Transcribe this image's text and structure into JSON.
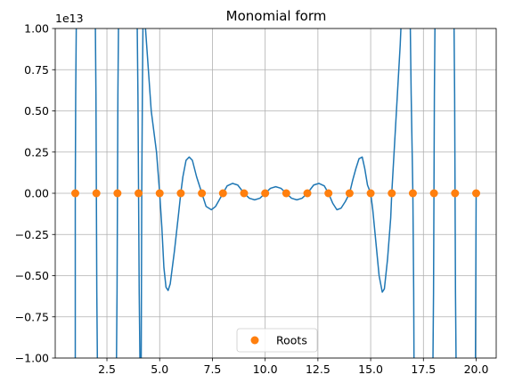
{
  "chart_data": {
    "type": "line",
    "title": "Monomial form",
    "xlabel": "",
    "ylabel": "",
    "xlim": [
      0.05,
      20.95
    ],
    "ylim": [
      -1.0,
      1.0
    ],
    "y_scale_label": "1e13",
    "x_ticks": [
      2.5,
      5.0,
      7.5,
      10.0,
      12.5,
      15.0,
      17.5,
      20.0
    ],
    "x_tick_labels": [
      "2.5",
      "5.0",
      "7.5",
      "10.0",
      "12.5",
      "15.0",
      "17.5",
      "20.0"
    ],
    "y_ticks": [
      -1.0,
      -0.75,
      -0.5,
      -0.25,
      0.0,
      0.25,
      0.5,
      0.75,
      1.0
    ],
    "y_tick_labels": [
      "−1.00",
      "−0.75",
      "−0.50",
      "−0.25",
      "0.00",
      "0.25",
      "0.50",
      "0.75",
      "1.00"
    ],
    "grid": true,
    "legend_position": "bottom-center",
    "series": [
      {
        "name": "",
        "kind": "line",
        "color": "#1f77b4",
        "points": [
          [
            1.0,
            -1.2
          ],
          [
            1.0,
            0.0
          ],
          [
            1.02,
            0.6
          ],
          [
            1.06,
            1.2
          ],
          [
            1.94,
            1.2
          ],
          [
            1.98,
            0.6
          ],
          [
            2.0,
            0.0
          ],
          [
            2.02,
            -0.6
          ],
          [
            2.06,
            -1.2
          ],
          [
            2.94,
            -1.2
          ],
          [
            2.98,
            -0.6
          ],
          [
            3.0,
            0.0
          ],
          [
            3.02,
            0.6
          ],
          [
            3.06,
            1.2
          ],
          [
            3.92,
            1.2
          ],
          [
            3.97,
            0.6
          ],
          [
            4.0,
            0.0
          ],
          [
            4.03,
            -0.6
          ],
          [
            4.08,
            -1.2
          ],
          [
            4.12,
            -1.2
          ],
          [
            4.15,
            0.0
          ],
          [
            4.18,
            0.6
          ],
          [
            4.22,
            1.2
          ],
          [
            4.6,
            0.5
          ],
          [
            4.85,
            0.25
          ],
          [
            5.0,
            0.0
          ],
          [
            5.1,
            -0.2
          ],
          [
            5.2,
            -0.45
          ],
          [
            5.3,
            -0.57
          ],
          [
            5.4,
            -0.59
          ],
          [
            5.5,
            -0.55
          ],
          [
            5.7,
            -0.35
          ],
          [
            5.9,
            -0.12
          ],
          [
            6.0,
            0.0
          ],
          [
            6.1,
            0.1
          ],
          [
            6.25,
            0.2
          ],
          [
            6.4,
            0.22
          ],
          [
            6.55,
            0.2
          ],
          [
            6.75,
            0.1
          ],
          [
            7.0,
            0.0
          ],
          [
            7.2,
            -0.08
          ],
          [
            7.45,
            -0.1
          ],
          [
            7.65,
            -0.08
          ],
          [
            8.0,
            0.0
          ],
          [
            8.2,
            0.045
          ],
          [
            8.45,
            0.06
          ],
          [
            8.7,
            0.05
          ],
          [
            9.0,
            0.0
          ],
          [
            9.25,
            -0.03
          ],
          [
            9.5,
            -0.04
          ],
          [
            9.75,
            -0.03
          ],
          [
            10.0,
            0.0
          ],
          [
            10.25,
            0.03
          ],
          [
            10.5,
            0.04
          ],
          [
            10.75,
            0.03
          ],
          [
            11.0,
            0.0
          ],
          [
            11.25,
            -0.03
          ],
          [
            11.5,
            -0.04
          ],
          [
            11.75,
            -0.03
          ],
          [
            12.0,
            0.0
          ],
          [
            12.3,
            0.05
          ],
          [
            12.55,
            0.06
          ],
          [
            12.8,
            0.045
          ],
          [
            13.0,
            0.0
          ],
          [
            13.2,
            -0.06
          ],
          [
            13.4,
            -0.1
          ],
          [
            13.6,
            -0.09
          ],
          [
            13.8,
            -0.05
          ],
          [
            14.0,
            0.0
          ],
          [
            14.15,
            0.08
          ],
          [
            14.3,
            0.15
          ],
          [
            14.45,
            0.21
          ],
          [
            14.6,
            0.22
          ],
          [
            14.72,
            0.15
          ],
          [
            14.85,
            0.05
          ],
          [
            15.0,
            0.0
          ],
          [
            15.1,
            -0.1
          ],
          [
            15.25,
            -0.3
          ],
          [
            15.4,
            -0.5
          ],
          [
            15.55,
            -0.6
          ],
          [
            15.65,
            -0.58
          ],
          [
            15.8,
            -0.4
          ],
          [
            15.95,
            -0.15
          ],
          [
            16.0,
            0.0
          ],
          [
            16.2,
            0.45
          ],
          [
            16.4,
            0.9
          ],
          [
            16.5,
            1.2
          ],
          [
            16.86,
            1.2
          ],
          [
            16.92,
            0.6
          ],
          [
            17.0,
            0.0
          ],
          [
            17.04,
            -0.6
          ],
          [
            17.06,
            -1.2
          ],
          [
            17.94,
            -1.2
          ],
          [
            17.98,
            -0.6
          ],
          [
            18.0,
            0.0
          ],
          [
            18.02,
            0.6
          ],
          [
            18.06,
            1.2
          ],
          [
            18.94,
            1.2
          ],
          [
            18.98,
            0.6
          ],
          [
            19.0,
            0.0
          ],
          [
            19.02,
            -0.6
          ],
          [
            19.06,
            -1.2
          ],
          [
            19.96,
            -1.2
          ],
          [
            19.98,
            -0.6
          ],
          [
            20.0,
            0.0
          ]
        ]
      },
      {
        "name": "Roots",
        "kind": "scatter",
        "color": "#ff7f0e",
        "x": [
          1,
          2,
          3,
          4,
          5,
          6,
          7,
          8,
          9,
          10,
          11,
          12,
          13,
          14,
          15,
          16,
          17,
          18,
          19,
          20
        ],
        "y": [
          0,
          0,
          0,
          0,
          0,
          0,
          0,
          0,
          0,
          0,
          0,
          0,
          0,
          0,
          0,
          0,
          0,
          0,
          0,
          0
        ]
      }
    ]
  }
}
